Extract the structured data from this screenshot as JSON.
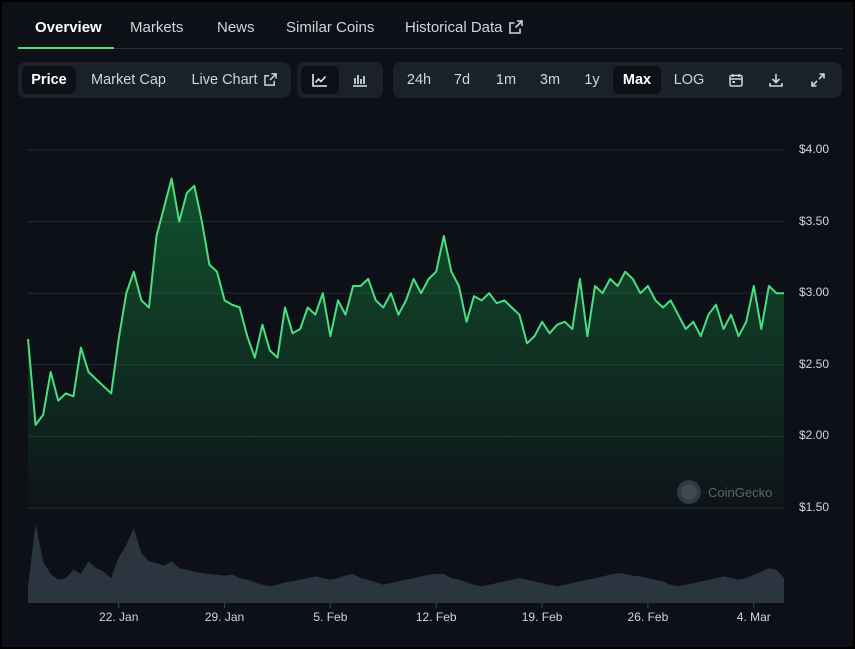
{
  "nav": {
    "tabs": [
      {
        "label": "Overview"
      },
      {
        "label": "Markets"
      },
      {
        "label": "News"
      },
      {
        "label": "Similar Coins"
      },
      {
        "label": "Historical Data"
      }
    ],
    "active": "Overview"
  },
  "toolbar": {
    "metric_tabs": [
      "Price",
      "Market Cap",
      "Live Chart"
    ],
    "selected_metric": "Price",
    "chart_type_icons": [
      "line-chart-icon",
      "candlestick-chart-icon"
    ],
    "selected_chart_type": "line-chart-icon",
    "ranges": [
      "24h",
      "7d",
      "1m",
      "3m",
      "1y",
      "Max"
    ],
    "selected_range": "Max",
    "log_label": "LOG",
    "action_icons": [
      "calendar-icon",
      "download-icon",
      "expand-icon"
    ]
  },
  "chart_data": {
    "type": "area",
    "y_tick_labels": [
      "$4.00",
      "$3.50",
      "$3.00",
      "$2.50",
      "$2.00",
      "$1.50"
    ],
    "ylim": [
      1.5,
      4.0
    ],
    "x_tick_labels": [
      "22. Jan",
      "29. Jan",
      "5. Feb",
      "12. Feb",
      "19. Feb",
      "26. Feb",
      "4. Mar"
    ],
    "x_tick_days": [
      22,
      29,
      36,
      43,
      50,
      57,
      64
    ],
    "x_range_days": [
      16,
      66
    ],
    "grid": true,
    "series": [
      {
        "x": [
          16,
          16.5,
          17,
          17.5,
          18,
          18.5,
          19,
          19.5,
          20,
          20.5,
          21,
          21.5,
          22,
          22.5,
          23,
          23.5,
          24,
          24.5,
          25,
          25.5,
          26,
          26.5,
          27,
          27.5,
          28,
          28.5,
          29,
          29.5,
          30,
          30.5,
          31,
          31.5,
          32,
          32.5,
          33,
          33.5,
          34,
          34.5,
          35,
          35.5,
          36,
          36.5,
          37,
          37.5,
          38,
          38.5,
          39,
          39.5,
          40,
          40.5,
          41,
          41.5,
          42,
          42.5,
          43,
          43.5,
          44,
          44.5,
          45,
          45.5,
          46,
          46.5,
          47,
          47.5,
          48,
          48.5,
          49,
          49.5,
          50,
          50.5,
          51,
          51.5,
          52,
          52.5,
          53,
          53.5,
          54,
          54.5,
          55,
          55.5,
          56,
          56.5,
          57,
          57.5,
          58,
          58.5,
          59,
          59.5,
          60,
          60.5,
          61,
          61.5,
          62,
          62.5,
          63,
          63.5,
          64,
          64.5,
          65,
          65.5,
          66
        ],
        "values": [
          2.68,
          2.08,
          2.15,
          2.45,
          2.25,
          2.3,
          2.28,
          2.62,
          2.45,
          2.4,
          2.35,
          2.3,
          2.68,
          3.0,
          3.15,
          2.95,
          2.9,
          3.4,
          3.6,
          3.8,
          3.5,
          3.7,
          3.75,
          3.5,
          3.2,
          3.15,
          2.95,
          2.92,
          2.9,
          2.7,
          2.55,
          2.78,
          2.6,
          2.55,
          2.9,
          2.72,
          2.75,
          2.9,
          2.85,
          3.0,
          2.7,
          2.95,
          2.85,
          3.05,
          3.05,
          3.1,
          2.95,
          2.9,
          3.0,
          2.85,
          2.95,
          3.1,
          3.0,
          3.1,
          3.15,
          3.4,
          3.15,
          3.05,
          2.8,
          2.98,
          2.95,
          3.0,
          2.93,
          2.95,
          2.9,
          2.85,
          2.65,
          2.7,
          2.8,
          2.72,
          2.78,
          2.8,
          2.75,
          3.1,
          2.7,
          3.05,
          3.0,
          3.1,
          3.05,
          3.15,
          3.1,
          3.0,
          3.05,
          2.95,
          2.9,
          2.95,
          2.85,
          2.75,
          2.8,
          2.7,
          2.85,
          2.92,
          2.75,
          2.85,
          2.7,
          2.8,
          3.05,
          2.75,
          3.05,
          3.0,
          3.0
        ]
      }
    ],
    "volume": [
      0.2,
      0.95,
      0.5,
      0.35,
      0.28,
      0.3,
      0.4,
      0.35,
      0.5,
      0.42,
      0.38,
      0.3,
      0.55,
      0.7,
      0.9,
      0.6,
      0.5,
      0.48,
      0.45,
      0.5,
      0.42,
      0.4,
      0.38,
      0.36,
      0.35,
      0.34,
      0.33,
      0.34,
      0.3,
      0.28,
      0.25,
      0.22,
      0.2,
      0.22,
      0.25,
      0.26,
      0.28,
      0.3,
      0.32,
      0.3,
      0.28,
      0.3,
      0.33,
      0.35,
      0.3,
      0.28,
      0.25,
      0.22,
      0.24,
      0.26,
      0.28,
      0.3,
      0.32,
      0.34,
      0.35,
      0.35,
      0.3,
      0.28,
      0.25,
      0.22,
      0.2,
      0.22,
      0.24,
      0.26,
      0.28,
      0.3,
      0.28,
      0.26,
      0.24,
      0.22,
      0.2,
      0.22,
      0.24,
      0.26,
      0.28,
      0.3,
      0.32,
      0.34,
      0.36,
      0.35,
      0.33,
      0.32,
      0.3,
      0.28,
      0.26,
      0.22,
      0.2,
      0.22,
      0.24,
      0.26,
      0.28,
      0.3,
      0.32,
      0.3,
      0.28,
      0.3,
      0.34,
      0.38,
      0.42,
      0.4,
      0.3
    ],
    "line_color": "#4ade80",
    "watermark": "CoinGecko"
  }
}
